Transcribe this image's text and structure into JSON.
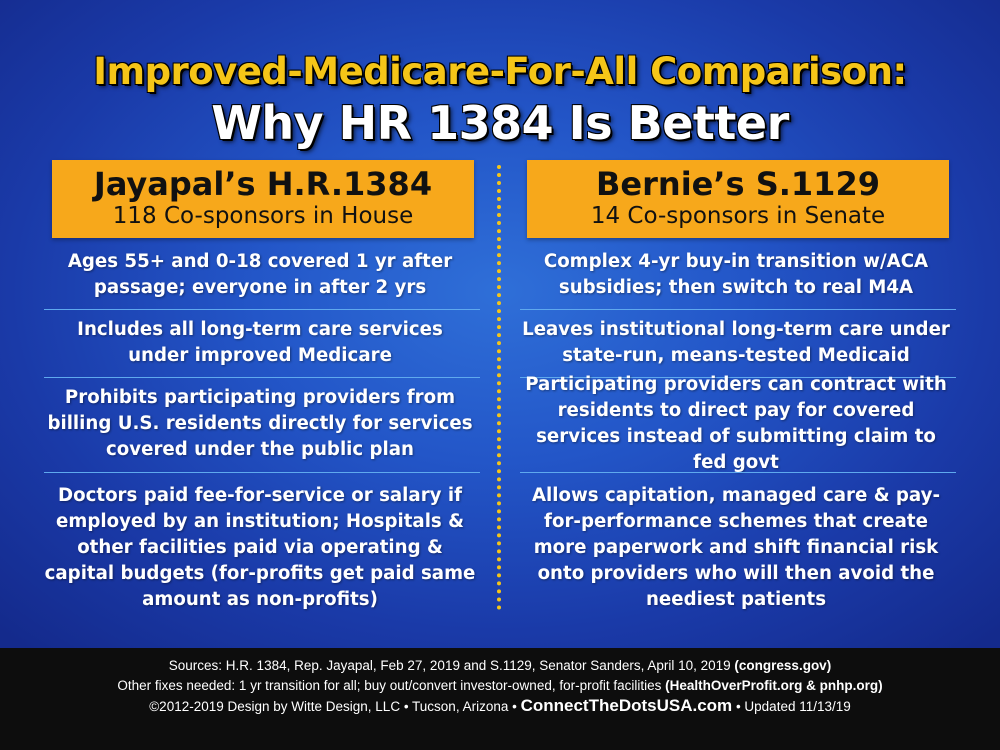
{
  "title": {
    "line1": "Improved-Medicare-For-All Comparison:",
    "line2": "Why HR 1384 Is Better"
  },
  "columns": {
    "left": {
      "name": "Jayapal’s H.R.1384",
      "sub": "118 Co-sponsors in House",
      "rows": [
        "Ages 55+ and 0-18 covered 1 yr after passage; everyone in after 2 yrs",
        "Includes all long-term care services under improved Medicare",
        "Prohibits participating providers from billing U.S. residents directly for services covered under the public plan",
        "Doctors paid fee-for-service or salary if employed by an institution; Hospitals & other facilities paid via operating & capital budgets (for-profits get paid same amount as non-profits)"
      ]
    },
    "right": {
      "name": "Bernie’s S.1129",
      "sub": "14 Co-sponsors in Senate",
      "rows": [
        "Complex 4-yr buy-in transition w/ACA subsidies; then switch to real M4A",
        "Leaves institutional long-term care under state-run, means-tested Medicaid",
        "Participating providers can contract with residents to direct pay for covered services instead of submitting claim to fed govt",
        "Allows capitation, managed care & pay-for-performance schemes that create more paperwork and shift financial risk onto providers who will then avoid the neediest patients"
      ]
    }
  },
  "footer": {
    "sources": "Sources: H.R. 1384, Rep. Jayapal, Feb 27, 2019 and S.1129, Senator Sanders, April 10, 2019",
    "sources_bold": "(congress.gov)",
    "fixes": "Other fixes needed: 1 yr transition for all; buy out/convert investor-owned, for-profit facilities",
    "fixes_bold": "(HealthOverProfit.org & pnhp.org)",
    "credit": "©2012-2019 Design by Witte Design, LLC • Tucson, Arizona •",
    "site": "ConnectTheDotsUSA.com",
    "updated": "• Updated 11/13/19"
  },
  "colors": {
    "title_yellow": "#f5c518",
    "header_orange": "#f7a81b",
    "background_blue": "#2356c8",
    "rule_blue": "#5fa9ee",
    "footer_black": "#0d0d0d"
  }
}
